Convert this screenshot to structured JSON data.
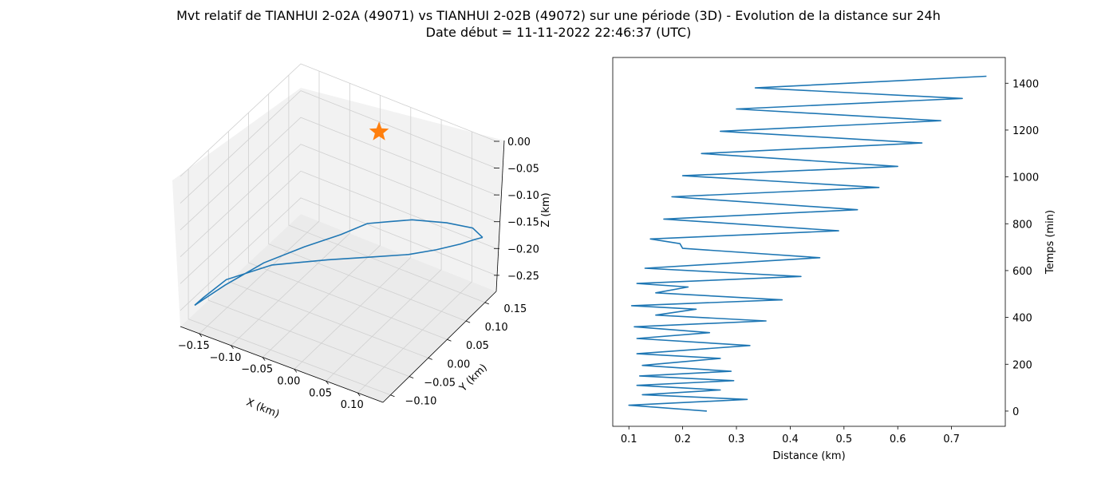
{
  "title": "Mvt relatif de TIANHUI 2-02A (49071) vs TIANHUI 2-02B (49072) sur une période (3D) - Evolution de la distance sur 24h",
  "subtitle": "Date début = 11-11-2022 22:46:37 (UTC)",
  "colors": {
    "series": "#1f77b4",
    "marker": "#ff7f0e",
    "pane_left": "#f2f2f2",
    "pane_right": "#e6e6e6",
    "pane_floor": "#ebebeb",
    "grid": "#d0d0d0"
  },
  "chart_data": [
    {
      "type": "line",
      "projection": "3d",
      "xlabel": "X (km)",
      "ylabel": "Y (km)",
      "zlabel": "Z (km)",
      "xticks": [
        "−0.15",
        "−0.10",
        "−0.05",
        "0.00",
        "0.05",
        "0.10"
      ],
      "yticks": [
        "−0.10",
        "−0.05",
        "0.00",
        "0.05",
        "0.10",
        "0.15"
      ],
      "zticks": [
        "0.00",
        "−0.05",
        "−0.10",
        "−0.15",
        "−0.20",
        "−0.25"
      ],
      "xlim": [
        -0.18,
        0.14
      ],
      "ylim": [
        -0.12,
        0.18
      ],
      "zlim": [
        -0.28,
        0.0
      ],
      "grid": true,
      "marker": {
        "symbol": "star",
        "x": -0.02,
        "y": 0.13,
        "z": -0.02
      },
      "series": [
        {
          "x": [
            0.13,
            0.12,
            0.09,
            0.04,
            0.01,
            -0.02,
            -0.05,
            -0.09,
            -0.13,
            -0.16,
            -0.175,
            -0.17,
            -0.15,
            -0.12,
            -0.06,
            0.01,
            0.06,
            0.09,
            0.11,
            0.125,
            0.13,
            0.13
          ],
          "y": [
            0.16,
            0.15,
            0.13,
            0.12,
            0.11,
            0.1,
            0.08,
            0.05,
            0.01,
            -0.04,
            -0.08,
            -0.1,
            -0.11,
            -0.1,
            -0.08,
            -0.05,
            -0.01,
            0.03,
            0.07,
            0.11,
            0.14,
            0.16
          ],
          "z": [
            -0.17,
            -0.15,
            -0.14,
            -0.15,
            -0.16,
            -0.17,
            -0.19,
            -0.21,
            -0.23,
            -0.25,
            -0.26,
            -0.25,
            -0.22,
            -0.18,
            -0.14,
            -0.12,
            -0.12,
            -0.13,
            -0.14,
            -0.15,
            -0.16,
            -0.17
          ]
        }
      ]
    },
    {
      "type": "line",
      "orientation": "vertical",
      "xlabel": "Distance (km)",
      "ylabel": "Temps (min)",
      "xlim": [
        0.07,
        0.8
      ],
      "ylim": [
        -65,
        1510
      ],
      "xticks": [
        0.1,
        0.2,
        0.3,
        0.4,
        0.5,
        0.6,
        0.7
      ],
      "yticks": [
        0,
        200,
        400,
        600,
        800,
        1000,
        1200,
        1400
      ],
      "y_axis_side": "right",
      "series": [
        {
          "x": [
            0.245,
            0.1,
            0.32,
            0.125,
            0.27,
            0.115,
            0.295,
            0.12,
            0.29,
            0.125,
            0.27,
            0.115,
            0.325,
            0.115,
            0.25,
            0.11,
            0.355,
            0.15,
            0.225,
            0.105,
            0.385,
            0.15,
            0.21,
            0.115,
            0.42,
            0.13,
            0.455,
            0.2,
            0.195,
            0.14,
            0.49,
            0.165,
            0.525,
            0.18,
            0.565,
            0.2,
            0.6,
            0.235,
            0.645,
            0.27,
            0.68,
            0.3,
            0.72,
            0.335,
            0.765
          ],
          "y": [
            0,
            25,
            50,
            70,
            90,
            110,
            130,
            150,
            170,
            195,
            225,
            245,
            280,
            310,
            335,
            360,
            385,
            410,
            435,
            450,
            475,
            505,
            530,
            545,
            575,
            610,
            655,
            695,
            715,
            735,
            770,
            820,
            860,
            915,
            955,
            1005,
            1045,
            1100,
            1145,
            1195,
            1240,
            1290,
            1335,
            1380,
            1430
          ]
        }
      ]
    }
  ]
}
